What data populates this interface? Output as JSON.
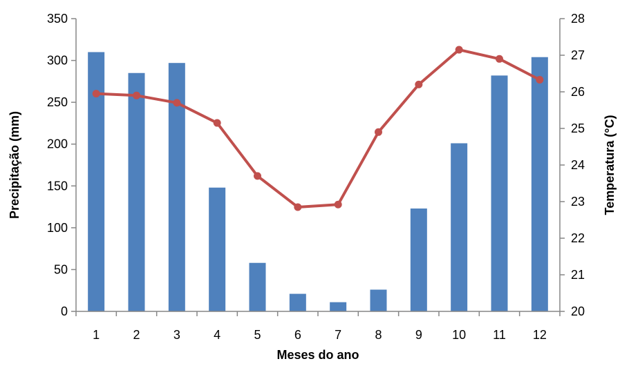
{
  "chart_data": {
    "type": "bar+line",
    "categories": [
      "1",
      "2",
      "3",
      "4",
      "5",
      "6",
      "7",
      "8",
      "9",
      "10",
      "11",
      "12"
    ],
    "series": [
      {
        "type": "bar",
        "axis": "left",
        "color": "#4f81bd",
        "values": [
          310,
          285,
          297,
          148,
          58,
          21,
          11,
          26,
          123,
          201,
          282,
          304
        ]
      },
      {
        "type": "line",
        "axis": "right",
        "color": "#c0504d",
        "values": [
          25.95,
          25.9,
          25.7,
          25.15,
          23.7,
          22.85,
          22.92,
          24.9,
          26.2,
          27.15,
          26.9,
          26.33
        ]
      }
    ],
    "xlabel": "Meses do ano",
    "ylabel_left": "Precipitação (mm)",
    "ylabel_right": "Temperatura (°C)",
    "ylim_left": [
      0,
      350
    ],
    "yticks_left": [
      "0",
      "50",
      "100",
      "150",
      "200",
      "250",
      "300",
      "350"
    ],
    "ylim_right": [
      20,
      28
    ],
    "yticks_right": [
      "20",
      "21",
      "22",
      "23",
      "24",
      "25",
      "26",
      "27",
      "28"
    ],
    "grid": false,
    "legend": "none"
  }
}
